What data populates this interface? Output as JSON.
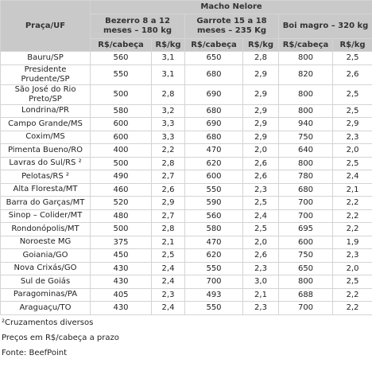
{
  "table": {
    "corner": "Praça/UF",
    "group": "Macho Nelore",
    "subgroups": [
      "Bezerro 8 a 12 meses – 180 kg",
      "Garrote 15 a 18 meses – 235 Kg",
      "Boi magro – 320 kg"
    ],
    "units": [
      "R$/cabeça",
      "R$/kg",
      "R$/cabeça",
      "R$/kg",
      "R$/cabeça",
      "R$/kg"
    ],
    "rows": [
      [
        "Bauru/SP",
        "560",
        "3,1",
        "650",
        "2,8",
        "800",
        "2,5"
      ],
      [
        "Presidente Prudente/SP",
        "550",
        "3,1",
        "680",
        "2,9",
        "820",
        "2,6"
      ],
      [
        "São José do Rio Preto/SP",
        "500",
        "2,8",
        "690",
        "2,9",
        "800",
        "2,5"
      ],
      [
        "Londrina/PR",
        "580",
        "3,2",
        "680",
        "2,9",
        "800",
        "2,5"
      ],
      [
        "Campo Grande/MS",
        "600",
        "3,3",
        "690",
        "2,9",
        "940",
        "2,9"
      ],
      [
        "Coxim/MS",
        "600",
        "3,3",
        "680",
        "2,9",
        "750",
        "2,3"
      ],
      [
        "Pimenta Bueno/RO",
        "400",
        "2,2",
        "470",
        "2,0",
        "640",
        "2,0"
      ],
      [
        "Lavras do Sul/RS ²",
        "500",
        "2,8",
        "620",
        "2,6",
        "800",
        "2,5"
      ],
      [
        "Pelotas/RS ²",
        "490",
        "2,7",
        "600",
        "2,6",
        "780",
        "2,4"
      ],
      [
        "Alta Floresta/MT",
        "460",
        "2,6",
        "550",
        "2,3",
        "680",
        "2,1"
      ],
      [
        "Barra do Garças/MT",
        "520",
        "2,9",
        "590",
        "2,5",
        "700",
        "2,2"
      ],
      [
        "Sinop – Colider/MT",
        "480",
        "2,7",
        "560",
        "2,4",
        "700",
        "2,2"
      ],
      [
        "Rondonópolis/MT",
        "500",
        "2,8",
        "580",
        "2,5",
        "695",
        "2,2"
      ],
      [
        "Noroeste MG",
        "375",
        "2,1",
        "470",
        "2,0",
        "600",
        "1,9"
      ],
      [
        "Goiania/GO",
        "450",
        "2,5",
        "620",
        "2,6",
        "750",
        "2,3"
      ],
      [
        "Nova Crixás/GO",
        "430",
        "2,4",
        "550",
        "2,3",
        "650",
        "2,0"
      ],
      [
        "Sul de Goiás",
        "430",
        "2,4",
        "700",
        "3,0",
        "800",
        "2,5"
      ],
      [
        "Paragominas/PA",
        "405",
        "2,3",
        "493",
        "2,1",
        "688",
        "2,2"
      ],
      [
        "Araguaçu/TO",
        "430",
        "2,4",
        "550",
        "2,3",
        "700",
        "2,2"
      ]
    ]
  },
  "notes": [
    "²Cruzamentos diversos",
    "Preços em R$/cabeça a prazo",
    "Fonte: BeefPoint"
  ]
}
